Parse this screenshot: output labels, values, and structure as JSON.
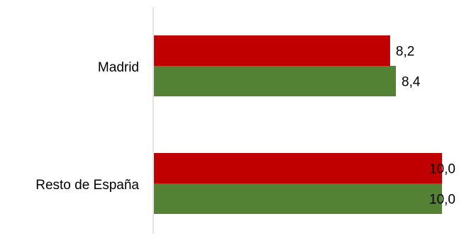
{
  "chart_data": {
    "type": "bar",
    "orientation": "horizontal",
    "categories": [
      "Madrid",
      "Resto de España"
    ],
    "series": [
      {
        "values": [
          8.2,
          10.0
        ],
        "labels": [
          "8,2",
          "10,0"
        ],
        "color": "#c00000"
      },
      {
        "values": [
          8.4,
          10.0
        ],
        "labels": [
          "8,4",
          "10,0"
        ],
        "color": "#548235"
      }
    ],
    "xlim": [
      0,
      10
    ],
    "grid": false,
    "legend": "none"
  }
}
